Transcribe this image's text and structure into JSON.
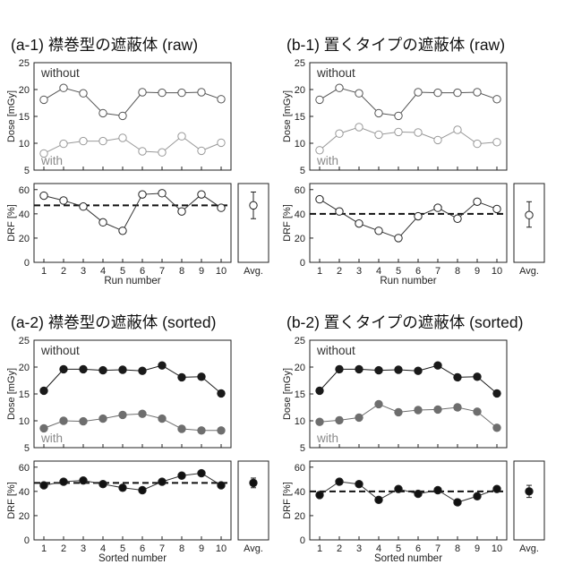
{
  "chart_data": [
    {
      "id": "a-1",
      "type": "line",
      "title": "(a-1) 襟巻型の遮蔽体 (raw)",
      "top": {
        "ylabel": "Dose [mGy]",
        "ylim": [
          5,
          25
        ],
        "yticks": [
          5,
          10,
          15,
          20,
          25
        ],
        "x": [
          1,
          2,
          3,
          4,
          5,
          6,
          7,
          8,
          9,
          10
        ],
        "series": [
          {
            "name": "without",
            "values": [
              18.1,
              20.3,
              19.3,
              15.6,
              15.1,
              19.5,
              19.4,
              19.4,
              19.5,
              18.2
            ],
            "marker": "open",
            "color": "#555555"
          },
          {
            "name": "with",
            "values": [
              8.1,
              9.9,
              10.4,
              10.4,
              11.0,
              8.5,
              8.3,
              11.3,
              8.6,
              10.1
            ],
            "marker": "open",
            "color": "#999999"
          }
        ]
      },
      "bottom": {
        "ylabel": "DRF [%]",
        "xlabel": "Run number",
        "ylim": [
          0,
          65
        ],
        "yticks": [
          0,
          20,
          40,
          60
        ],
        "x": [
          1,
          2,
          3,
          4,
          5,
          6,
          7,
          8,
          9,
          10
        ],
        "values": [
          55,
          51,
          46,
          33,
          26,
          56,
          57,
          42,
          56,
          45
        ],
        "marker": "open",
        "mean": 47,
        "avg": {
          "label": "Avg.",
          "value": 47,
          "err_low": 36,
          "err_high": 58
        }
      }
    },
    {
      "id": "b-1",
      "type": "line",
      "title": "(b-1) 置くタイプの遮蔽体 (raw)",
      "top": {
        "ylabel": "Dose [mGy]",
        "ylim": [
          5,
          25
        ],
        "yticks": [
          5,
          10,
          15,
          20,
          25
        ],
        "x": [
          1,
          2,
          3,
          4,
          5,
          6,
          7,
          8,
          9,
          10
        ],
        "series": [
          {
            "name": "without",
            "values": [
              18.1,
              20.3,
              19.3,
              15.6,
              15.1,
              19.5,
              19.4,
              19.4,
              19.5,
              18.2
            ],
            "marker": "open",
            "color": "#555555"
          },
          {
            "name": "with",
            "values": [
              8.7,
              11.8,
              13.0,
              11.6,
              12.1,
              12.0,
              10.6,
              12.5,
              9.9,
              10.2
            ],
            "marker": "open",
            "color": "#999999"
          }
        ]
      },
      "bottom": {
        "ylabel": "DRF [%]",
        "xlabel": "Run number",
        "ylim": [
          0,
          65
        ],
        "yticks": [
          0,
          20,
          40,
          60
        ],
        "x": [
          1,
          2,
          3,
          4,
          5,
          6,
          7,
          8,
          9,
          10
        ],
        "values": [
          52,
          42,
          32,
          26,
          20,
          38,
          45,
          36,
          50,
          44
        ],
        "marker": "open",
        "mean": 40,
        "avg": {
          "label": "Avg.",
          "value": 39,
          "err_low": 29,
          "err_high": 50
        }
      }
    },
    {
      "id": "a-2",
      "type": "line",
      "title": "(a-2) 襟巻型の遮蔽体 (sorted)",
      "top": {
        "ylabel": "Dose [mGy]",
        "ylim": [
          5,
          25
        ],
        "yticks": [
          5,
          10,
          15,
          20,
          25
        ],
        "x": [
          1,
          2,
          3,
          4,
          5,
          6,
          7,
          8,
          9,
          10
        ],
        "series": [
          {
            "name": "without",
            "values": [
              15.6,
              19.6,
              19.6,
              19.4,
              19.5,
              19.3,
              20.3,
              18.1,
              18.2,
              15.1
            ],
            "marker": "filled",
            "color": "#1a1a1a"
          },
          {
            "name": "with",
            "values": [
              8.6,
              10.0,
              9.9,
              10.4,
              11.1,
              11.3,
              10.4,
              8.5,
              8.2,
              8.2
            ],
            "marker": "filled",
            "color": "#6e6e6e"
          }
        ]
      },
      "bottom": {
        "ylabel": "DRF [%]",
        "xlabel": "Sorted number",
        "ylim": [
          0,
          65
        ],
        "yticks": [
          0,
          20,
          40,
          60
        ],
        "x": [
          1,
          2,
          3,
          4,
          5,
          6,
          7,
          8,
          9,
          10
        ],
        "values": [
          45,
          48,
          49,
          46,
          43,
          41,
          48,
          53,
          55,
          45
        ],
        "marker": "filled",
        "mean": 47,
        "avg": {
          "label": "Avg.",
          "value": 47,
          "err_low": 43,
          "err_high": 51
        }
      }
    },
    {
      "id": "b-2",
      "type": "line",
      "title": "(b-2) 置くタイプの遮蔽体 (sorted)",
      "top": {
        "ylabel": "Dose [mGy]",
        "ylim": [
          5,
          25
        ],
        "yticks": [
          5,
          10,
          15,
          20,
          25
        ],
        "x": [
          1,
          2,
          3,
          4,
          5,
          6,
          7,
          8,
          9,
          10
        ],
        "series": [
          {
            "name": "without",
            "values": [
              15.6,
              19.6,
              19.6,
              19.4,
              19.5,
              19.3,
              20.3,
              18.1,
              18.2,
              15.1
            ],
            "marker": "filled",
            "color": "#1a1a1a"
          },
          {
            "name": "with",
            "values": [
              9.8,
              10.1,
              10.6,
              13.1,
              11.6,
              12.0,
              12.1,
              12.5,
              11.7,
              8.7
            ],
            "marker": "filled",
            "color": "#6e6e6e"
          }
        ]
      },
      "bottom": {
        "ylabel": "DRF [%]",
        "xlabel": "Sorted number",
        "ylim": [
          0,
          65
        ],
        "yticks": [
          0,
          20,
          40,
          60
        ],
        "x": [
          1,
          2,
          3,
          4,
          5,
          6,
          7,
          8,
          9,
          10
        ],
        "values": [
          37,
          48,
          46,
          33,
          42,
          38,
          41,
          31,
          36,
          42
        ],
        "marker": "filled",
        "mean": 40,
        "avg": {
          "label": "Avg.",
          "value": 40,
          "err_low": 35,
          "err_high": 45
        }
      }
    }
  ]
}
